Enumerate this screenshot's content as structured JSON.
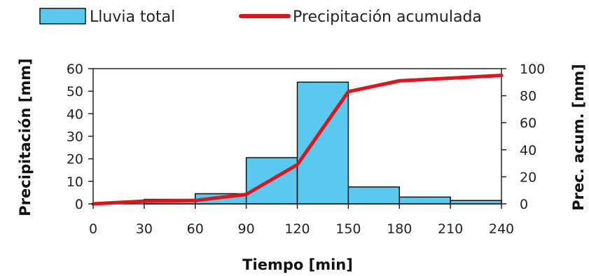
{
  "chart_data": {
    "type": "bar",
    "legend_position": "top",
    "grid": false,
    "x": {
      "label": "Tiempo [min]",
      "range": [
        0,
        240
      ],
      "ticks": [
        0,
        30,
        60,
        90,
        120,
        150,
        180,
        210,
        240
      ],
      "tick_labels": [
        "0",
        "30",
        "60",
        "90",
        "120",
        "150",
        "180",
        "210",
        "240"
      ]
    },
    "y_left": {
      "label": "Precipitación [mm]",
      "range": [
        0,
        60
      ],
      "ticks": [
        0,
        10,
        20,
        30,
        40,
        50,
        60
      ],
      "tick_labels": [
        "0",
        "10",
        "20",
        "30",
        "40",
        "50",
        "60"
      ]
    },
    "y_right": {
      "label": "Prec. acum. [mm]",
      "range": [
        0,
        100
      ],
      "ticks": [
        0,
        20,
        40,
        60,
        80,
        100
      ],
      "tick_labels": [
        "0",
        "20",
        "40",
        "60",
        "80",
        "100"
      ]
    },
    "series": [
      {
        "name": "Lluvia total",
        "type": "bar",
        "axis": "left",
        "color": "#5bc8f0",
        "bins": [
          {
            "start": 0,
            "end": 30,
            "value": 0
          },
          {
            "start": 30,
            "end": 60,
            "value": 2
          },
          {
            "start": 60,
            "end": 90,
            "value": 4.5
          },
          {
            "start": 90,
            "end": 120,
            "value": 20.5
          },
          {
            "start": 120,
            "end": 150,
            "value": 54
          },
          {
            "start": 150,
            "end": 180,
            "value": 7.5
          },
          {
            "start": 180,
            "end": 210,
            "value": 3
          },
          {
            "start": 210,
            "end": 240,
            "value": 1.5
          }
        ]
      },
      {
        "name": "Precipitación acumulada",
        "type": "line",
        "axis": "right",
        "color": "#e0151b",
        "points": [
          {
            "x": 0,
            "y": 0
          },
          {
            "x": 30,
            "y": 2
          },
          {
            "x": 60,
            "y": 2.5
          },
          {
            "x": 90,
            "y": 7
          },
          {
            "x": 120,
            "y": 29
          },
          {
            "x": 150,
            "y": 83
          },
          {
            "x": 180,
            "y": 91
          },
          {
            "x": 210,
            "y": 93
          },
          {
            "x": 240,
            "y": 95
          }
        ]
      }
    ]
  }
}
